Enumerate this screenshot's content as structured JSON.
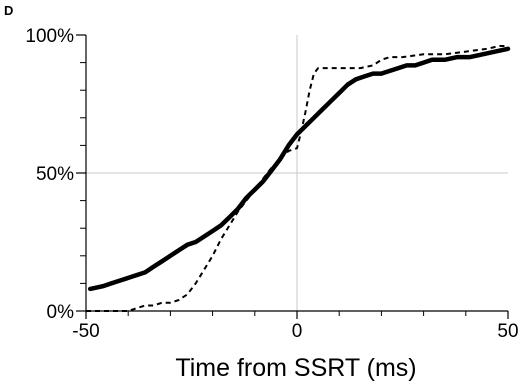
{
  "chart_data": {
    "type": "line",
    "panel_label": "D",
    "xlabel": "Time from SSRT (ms)",
    "ylabel": "",
    "xlim": [
      -50,
      50
    ],
    "ylim": [
      0,
      100
    ],
    "x_ticks": [
      {
        "value": -50,
        "label": "-50"
      },
      {
        "value": 0,
        "label": "0"
      },
      {
        "value": 50,
        "label": "50"
      }
    ],
    "y_ticks": [
      {
        "value": 0,
        "label": "0%"
      },
      {
        "value": 50,
        "label": "50%"
      },
      {
        "value": 100,
        "label": "100%"
      }
    ],
    "reference_lines": {
      "x": 0,
      "y": 50,
      "color": "#c8c8c8"
    },
    "series": [
      {
        "style": "solid",
        "color": "#000000",
        "x": [
          -49,
          -46,
          -44,
          -42,
          -40,
          -38,
          -36,
          -34,
          -32,
          -30,
          -28,
          -26,
          -24,
          -22,
          -20,
          -18,
          -16,
          -14,
          -12,
          -10,
          -8,
          -6,
          -4,
          -2,
          0,
          2,
          4,
          6,
          8,
          10,
          12,
          14,
          16,
          18,
          20,
          22,
          24,
          26,
          28,
          30,
          32,
          35,
          38,
          41,
          44,
          47,
          50
        ],
        "y": [
          8,
          9,
          10,
          11,
          12,
          13,
          14,
          16,
          18,
          20,
          22,
          24,
          25,
          27,
          29,
          31,
          34,
          37,
          41,
          44,
          47,
          51,
          55,
          60,
          64,
          67,
          70,
          73,
          76,
          79,
          82,
          84,
          85,
          86,
          86,
          87,
          88,
          89,
          89,
          90,
          91,
          91,
          92,
          92,
          93,
          94,
          95
        ]
      },
      {
        "style": "dashed",
        "color": "#000000",
        "x": [
          -50,
          -45,
          -40,
          -38,
          -36,
          -34,
          -32,
          -30,
          -28,
          -26,
          -24,
          -22,
          -20,
          -18,
          -16,
          -14,
          -12,
          -10,
          -8,
          -6,
          -4,
          -2,
          0,
          1,
          2,
          3,
          4,
          5,
          8,
          12,
          15,
          18,
          20,
          22,
          25,
          30,
          35,
          40,
          45,
          48,
          50
        ],
        "y": [
          0,
          0,
          0,
          1,
          2,
          2,
          3,
          3,
          4,
          6,
          10,
          15,
          20,
          26,
          31,
          36,
          40,
          44,
          48,
          52,
          55,
          58,
          59,
          65,
          72,
          80,
          86,
          88,
          88,
          88,
          88,
          89,
          91,
          92,
          92,
          93,
          93,
          94,
          95,
          96,
          96
        ]
      }
    ]
  }
}
